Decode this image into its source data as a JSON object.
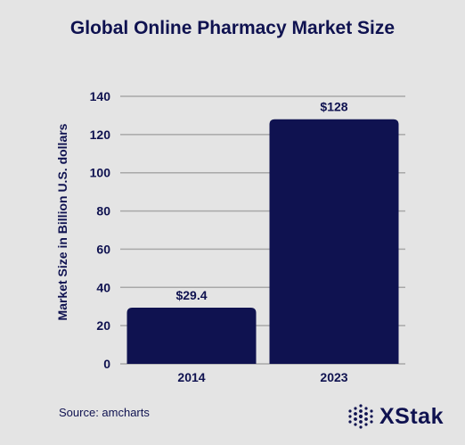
{
  "title": "Global Online Pharmacy Market Size",
  "source": "Source: amcharts",
  "logo_text": "XStak",
  "colors": {
    "bar": "#0f1250",
    "background": "#e4e4e4",
    "grid": "#a8a8a8"
  },
  "chart_data": {
    "type": "bar",
    "categories": [
      "2014",
      "2023"
    ],
    "values": [
      29.4,
      128
    ],
    "value_labels": [
      "$29.4",
      "$128"
    ],
    "title": "Global Online Pharmacy Market Size",
    "xlabel": "",
    "ylabel": "Market Size in Billion U.S. dollars",
    "ylim": [
      0,
      140
    ],
    "yticks": [
      "0",
      "20",
      "40",
      "60",
      "80",
      "100",
      "120",
      "140"
    ],
    "grid": true
  }
}
